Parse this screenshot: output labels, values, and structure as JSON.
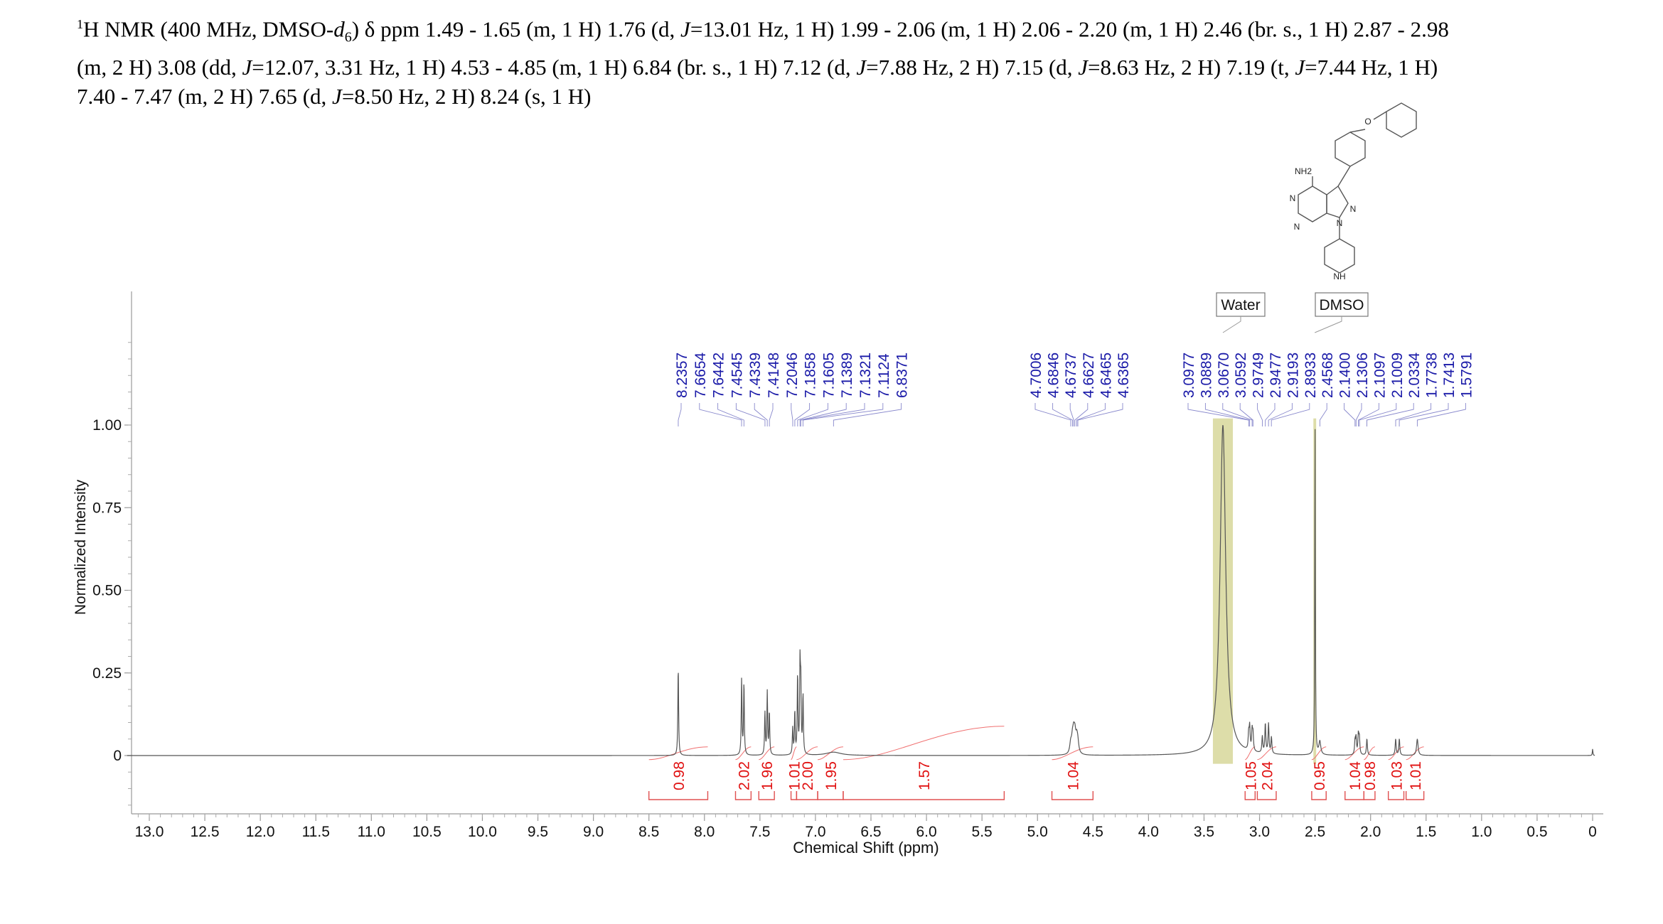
{
  "header": {
    "nucleus_mass": "1",
    "line1_a": "H NMR (400 MHz, DMSO-",
    "solvent_d": "d",
    "solvent_sub": "6",
    "line1_b": ") δ ppm 1.49 - 1.65 (m, 1 H) 1.76 (d, ",
    "j1": "J",
    "line1_c": "=13.01 Hz, 1 H) 1.99 - 2.06 (m, 1 H) 2.06 - 2.20 (m, 1 H) 2.46 (br. s., 1 H) 2.87 - 2.98",
    "line2_a": "(m, 2 H) 3.08 (dd, ",
    "j2": "J",
    "line2_b": "=12.07, 3.31 Hz, 1 H) 4.53 - 4.85 (m, 1 H) 6.84 (br. s., 1 H) 7.12 (d,  ",
    "j3": "J",
    "line2_c": "=7.88 Hz, 2 H) 7.15 (d, ",
    "j4": "J",
    "line2_d": "=8.63 Hz, 2 H) 7.19 (t, ",
    "j5": "J",
    "line2_e": "=7.44 Hz, 1 H)",
    "line3_a": "7.40 - 7.47 (m, 2 H) 7.65 (d, ",
    "j6": "J",
    "line3_b": "=8.50 Hz, 2 H) 8.24 (s, 1 H)"
  },
  "molecule": {
    "labels": [
      "O",
      "NH2",
      "N",
      "N",
      "N",
      "N",
      "NH"
    ]
  },
  "chart_data": {
    "type": "line",
    "title": "",
    "xlabel": "Chemical Shift (ppm)",
    "ylabel": "Normalized Intensity",
    "xlim": [
      13.2,
      -0.1
    ],
    "ylim": [
      -0.17,
      1.4
    ],
    "x_reversed": true,
    "x_ticks": [
      "13.0",
      "12.5",
      "12.0",
      "11.5",
      "11.0",
      "10.5",
      "10.0",
      "9.5",
      "9.0",
      "8.5",
      "8.0",
      "7.5",
      "7.0",
      "6.5",
      "6.0",
      "5.5",
      "5.0",
      "4.5",
      "4.0",
      "3.5",
      "3.0",
      "2.5",
      "2.0",
      "1.5",
      "1.0",
      "0.5",
      "0"
    ],
    "y_ticks": [
      "0",
      "0.25",
      "0.50",
      "0.75",
      "1.00"
    ],
    "series": [
      {
        "name": "spectrum",
        "peaks": [
          {
            "ppm": 8.236,
            "height": 0.27,
            "width": 0.004
          },
          {
            "ppm": 7.665,
            "height": 0.23,
            "width": 0.004
          },
          {
            "ppm": 7.644,
            "height": 0.22,
            "width": 0.004
          },
          {
            "ppm": 7.455,
            "height": 0.13,
            "width": 0.004
          },
          {
            "ppm": 7.434,
            "height": 0.19,
            "width": 0.004
          },
          {
            "ppm": 7.415,
            "height": 0.13,
            "width": 0.004
          },
          {
            "ppm": 7.205,
            "height": 0.08,
            "width": 0.004
          },
          {
            "ppm": 7.186,
            "height": 0.13,
            "width": 0.004
          },
          {
            "ppm": 7.161,
            "height": 0.24,
            "width": 0.004
          },
          {
            "ppm": 7.139,
            "height": 0.26,
            "width": 0.004
          },
          {
            "ppm": 7.132,
            "height": 0.2,
            "width": 0.004
          },
          {
            "ppm": 7.112,
            "height": 0.18,
            "width": 0.004
          },
          {
            "ppm": 6.837,
            "height": 0.01,
            "width": 0.08
          },
          {
            "ppm": 4.701,
            "height": 0.03,
            "width": 0.01
          },
          {
            "ppm": 4.685,
            "height": 0.04,
            "width": 0.01
          },
          {
            "ppm": 4.674,
            "height": 0.05,
            "width": 0.01
          },
          {
            "ppm": 4.663,
            "height": 0.05,
            "width": 0.01
          },
          {
            "ppm": 4.647,
            "height": 0.04,
            "width": 0.01
          },
          {
            "ppm": 4.637,
            "height": 0.03,
            "width": 0.01
          },
          {
            "ppm": 3.33,
            "height": 1.0,
            "width": 0.03
          },
          {
            "ppm": 3.098,
            "height": 0.05,
            "width": 0.005
          },
          {
            "ppm": 3.089,
            "height": 0.07,
            "width": 0.005
          },
          {
            "ppm": 3.067,
            "height": 0.06,
            "width": 0.005
          },
          {
            "ppm": 3.059,
            "height": 0.05,
            "width": 0.005
          },
          {
            "ppm": 2.975,
            "height": 0.05,
            "width": 0.005
          },
          {
            "ppm": 2.948,
            "height": 0.09,
            "width": 0.005
          },
          {
            "ppm": 2.919,
            "height": 0.09,
            "width": 0.005
          },
          {
            "ppm": 2.893,
            "height": 0.05,
            "width": 0.005
          },
          {
            "ppm": 2.5,
            "height": 1.02,
            "width": 0.003
          },
          {
            "ppm": 2.457,
            "height": 0.04,
            "width": 0.01
          },
          {
            "ppm": 2.14,
            "height": 0.04,
            "width": 0.005
          },
          {
            "ppm": 2.131,
            "height": 0.05,
            "width": 0.005
          },
          {
            "ppm": 2.11,
            "height": 0.06,
            "width": 0.005
          },
          {
            "ppm": 2.101,
            "height": 0.05,
            "width": 0.005
          },
          {
            "ppm": 2.033,
            "height": 0.05,
            "width": 0.005
          },
          {
            "ppm": 1.774,
            "height": 0.05,
            "width": 0.005
          },
          {
            "ppm": 1.741,
            "height": 0.05,
            "width": 0.005
          },
          {
            "ppm": 1.579,
            "height": 0.05,
            "width": 0.008
          },
          {
            "ppm": 0.0,
            "height": 0.02,
            "width": 0.003
          }
        ]
      }
    ],
    "peak_labels": [
      "8.2357",
      "7.6654",
      "7.6442",
      "7.4545",
      "7.4339",
      "7.4148",
      "7.2046",
      "7.1858",
      "7.1605",
      "7.1389",
      "7.1321",
      "7.1124",
      "6.8371",
      "4.7006",
      "4.6846",
      "4.6737",
      "4.6627",
      "4.6465",
      "4.6365",
      "3.0977",
      "3.0889",
      "3.0670",
      "3.0592",
      "2.9749",
      "2.9477",
      "2.9193",
      "2.8933",
      "2.4568",
      "2.1400",
      "2.1306",
      "2.1097",
      "2.1009",
      "2.0334",
      "1.7738",
      "1.7413",
      "1.5791"
    ],
    "integrals": [
      {
        "from": 8.5,
        "to": 7.97,
        "value": "0.98"
      },
      {
        "from": 7.72,
        "to": 7.58,
        "value": "2.02"
      },
      {
        "from": 7.51,
        "to": 7.37,
        "value": "1.96"
      },
      {
        "from": 7.22,
        "to": 7.17,
        "value": "1.01"
      },
      {
        "from": 7.17,
        "to": 6.98,
        "value": "2.00"
      },
      {
        "from": 6.98,
        "to": 6.75,
        "value": "1.95"
      },
      {
        "from": 6.75,
        "to": 5.3,
        "value": "1.57"
      },
      {
        "from": 4.87,
        "to": 4.5,
        "value": "1.04"
      },
      {
        "from": 3.13,
        "to": 3.04,
        "value": "1.05"
      },
      {
        "from": 3.02,
        "to": 2.85,
        "value": "2.04"
      },
      {
        "from": 2.53,
        "to": 2.4,
        "value": "0.95"
      },
      {
        "from": 2.23,
        "to": 2.06,
        "value": "1.04"
      },
      {
        "from": 2.06,
        "to": 1.96,
        "value": "0.98"
      },
      {
        "from": 1.84,
        "to": 1.7,
        "value": "1.03"
      },
      {
        "from": 1.68,
        "to": 1.52,
        "value": "1.01"
      }
    ],
    "solvent_regions": [
      {
        "label": "Water",
        "from": 3.42,
        "to": 3.24
      },
      {
        "label": "DMSO",
        "from": 2.515,
        "to": 2.49
      }
    ]
  }
}
